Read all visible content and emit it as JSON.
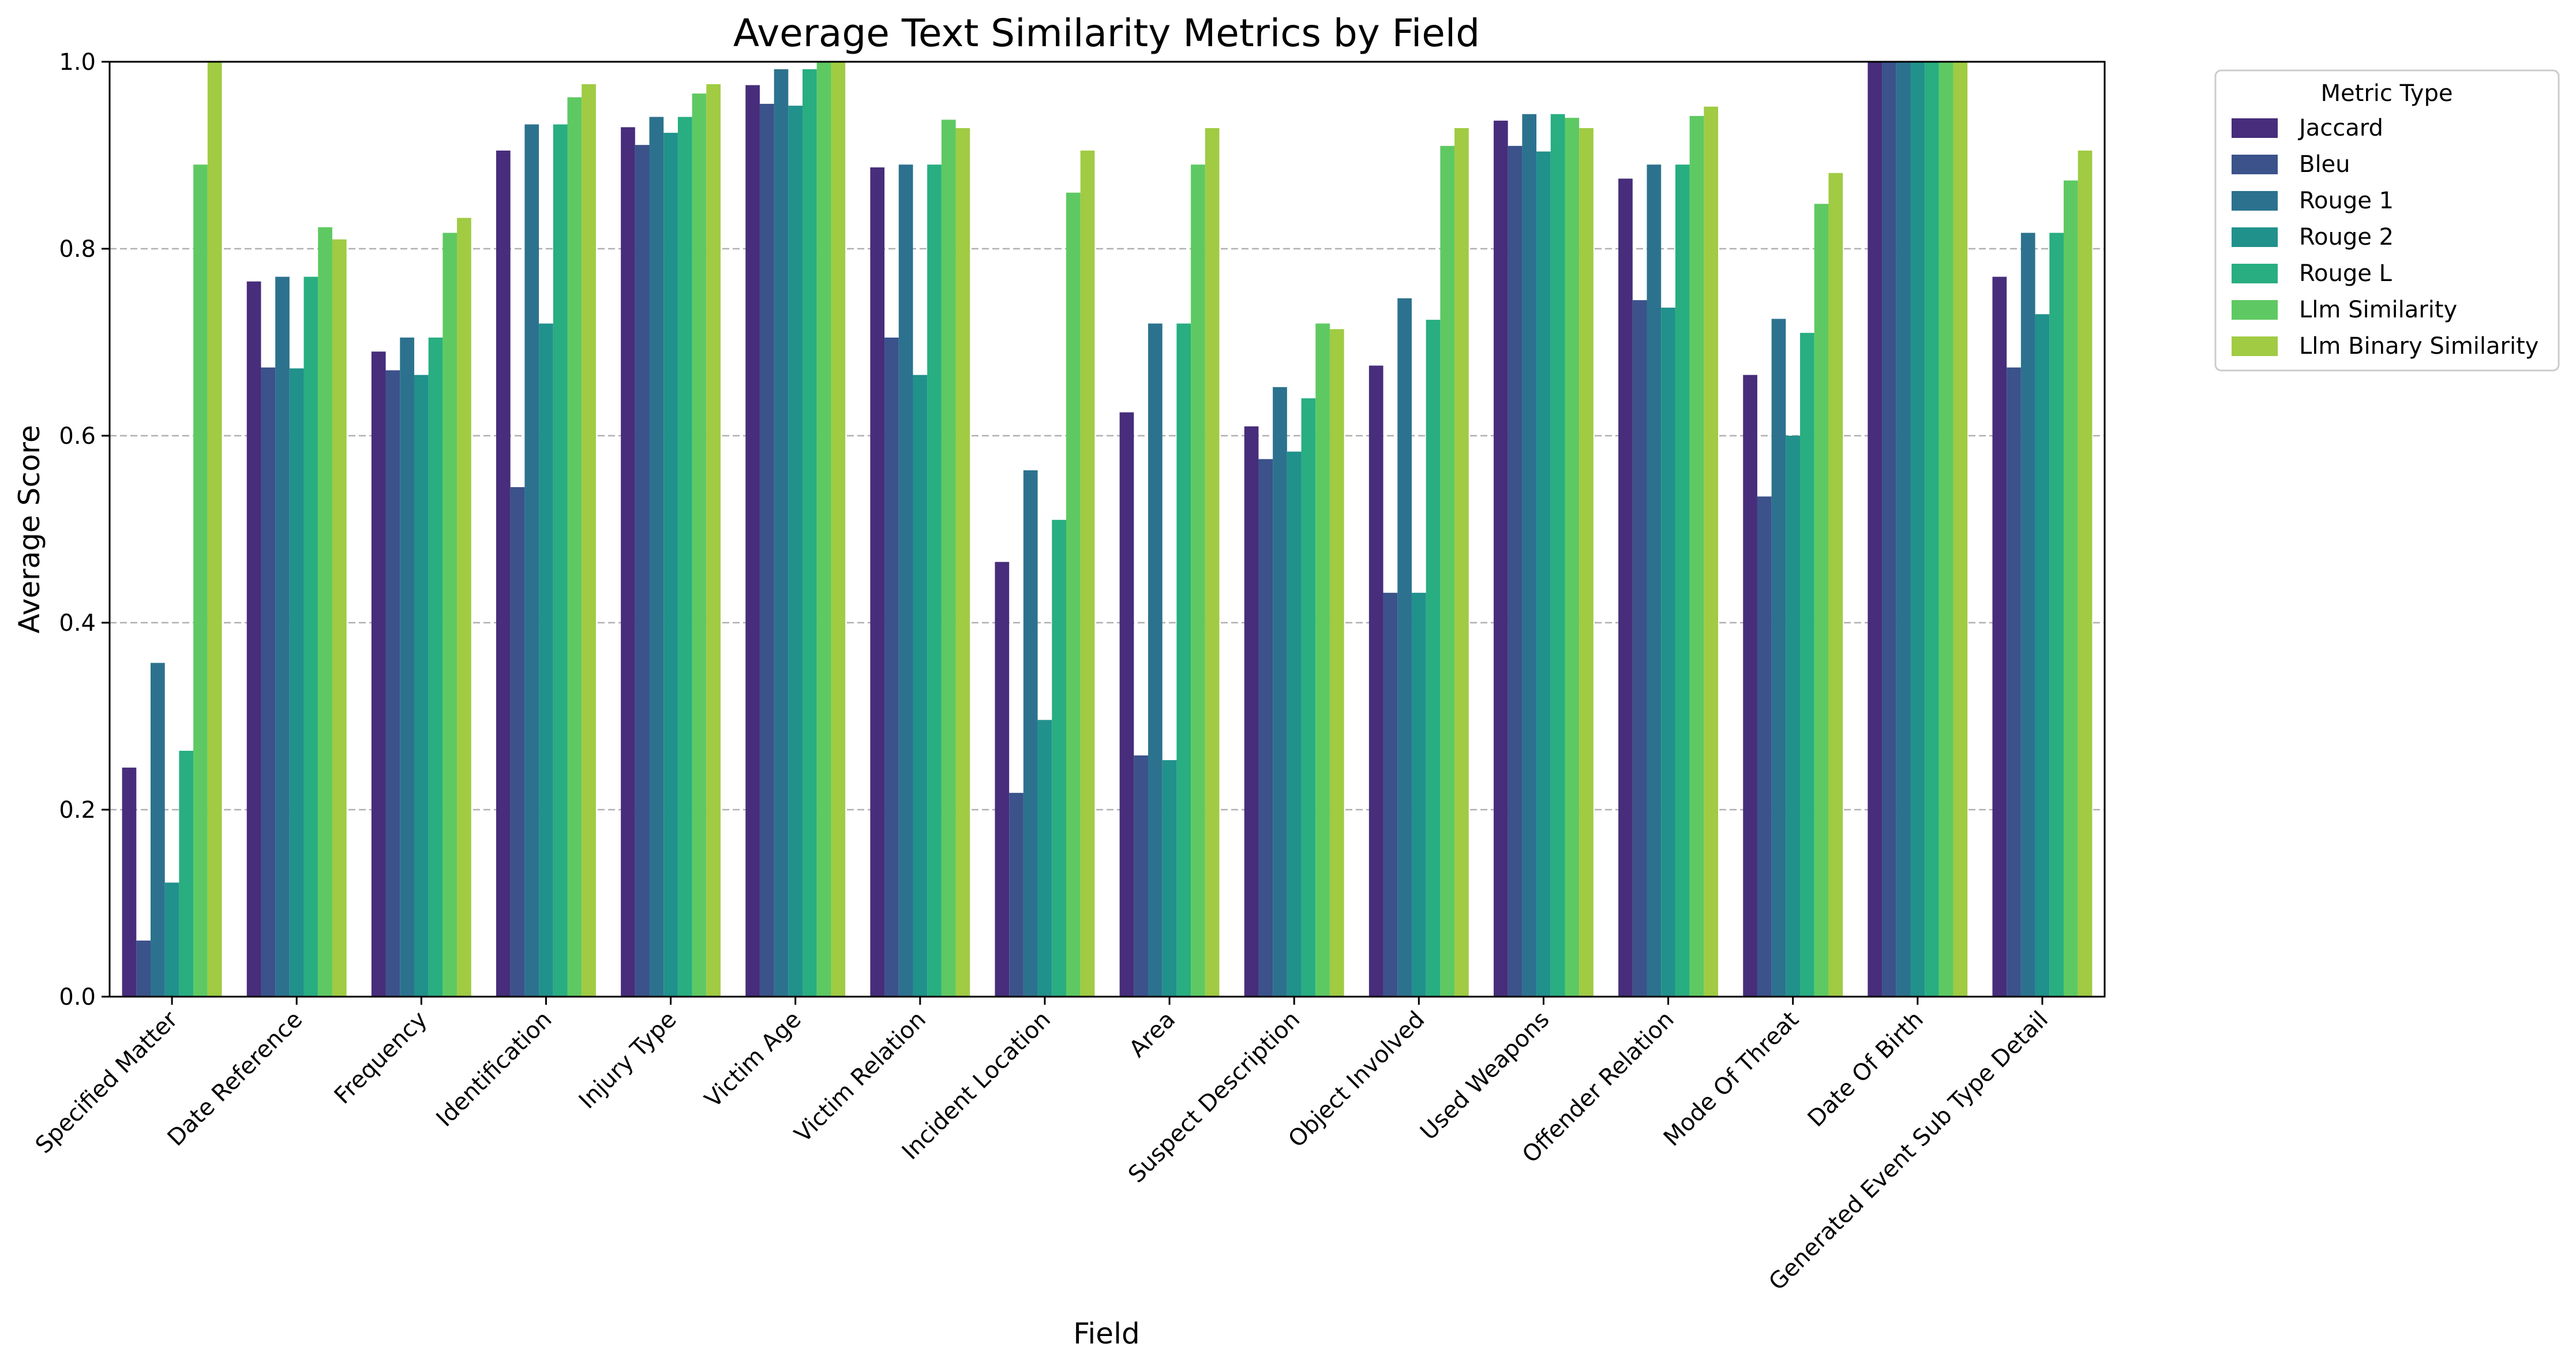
{
  "chart_data": {
    "type": "bar",
    "title": "Average Text Similarity Metrics by Field",
    "xlabel": "Field",
    "ylabel": "Average Score",
    "ylim": [
      0,
      1.0
    ],
    "yticks": [
      "0.0",
      "0.2",
      "0.4",
      "0.6",
      "0.8",
      "1.0"
    ],
    "grid": "horizontal dashed",
    "legend": {
      "title": "Metric Type",
      "placement": "outside-top-right"
    },
    "categories": [
      "Specified Matter",
      "Date Reference",
      "Frequency",
      "Identification",
      "Injury Type",
      "Victim Age",
      "Victim Relation",
      "Incident Location",
      "Area",
      "Suspect Description",
      "Object Involved",
      "Used Weapons",
      "Offender Relation",
      "Mode Of Threat",
      "Date Of Birth",
      "Generated Event Sub Type Detail"
    ],
    "series": [
      {
        "name": "Jaccard",
        "color": "#472d7b",
        "values": [
          0.245,
          0.765,
          0.69,
          0.905,
          0.93,
          0.975,
          0.887,
          0.465,
          0.625,
          0.61,
          0.675,
          0.937,
          0.875,
          0.665,
          1.0,
          0.77
        ]
      },
      {
        "name": "Bleu",
        "color": "#3b528b",
        "values": [
          0.06,
          0.673,
          0.67,
          0.545,
          0.911,
          0.955,
          0.705,
          0.218,
          0.258,
          0.575,
          0.432,
          0.91,
          0.745,
          0.535,
          1.0,
          0.673
        ]
      },
      {
        "name": "Rouge 1",
        "color": "#2c728e",
        "values": [
          0.357,
          0.77,
          0.705,
          0.933,
          0.941,
          0.992,
          0.89,
          0.563,
          0.72,
          0.652,
          0.747,
          0.944,
          0.89,
          0.725,
          1.0,
          0.817
        ]
      },
      {
        "name": "Rouge 2",
        "color": "#21918c",
        "values": [
          0.122,
          0.672,
          0.665,
          0.72,
          0.924,
          0.953,
          0.665,
          0.296,
          0.253,
          0.583,
          0.432,
          0.904,
          0.737,
          0.6,
          1.0,
          0.73
        ]
      },
      {
        "name": "Rouge L",
        "color": "#28ae80",
        "values": [
          0.263,
          0.77,
          0.705,
          0.933,
          0.941,
          0.992,
          0.89,
          0.51,
          0.72,
          0.64,
          0.724,
          0.944,
          0.89,
          0.71,
          1.0,
          0.817
        ]
      },
      {
        "name": "Llm Similarity",
        "color": "#5ec962",
        "values": [
          0.89,
          0.823,
          0.817,
          0.962,
          0.966,
          1.0,
          0.938,
          0.86,
          0.89,
          0.72,
          0.91,
          0.94,
          0.942,
          0.848,
          1.0,
          0.873
        ]
      },
      {
        "name": "Llm Binary Similarity",
        "color": "#a0cb43",
        "values": [
          1.0,
          0.81,
          0.833,
          0.976,
          0.976,
          1.0,
          0.929,
          0.905,
          0.929,
          0.714,
          0.929,
          0.929,
          0.952,
          0.881,
          1.0,
          0.905
        ]
      }
    ]
  }
}
